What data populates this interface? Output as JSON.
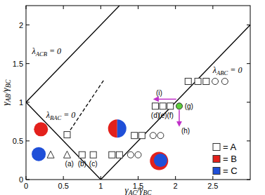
{
  "chart_data": {
    "type": "scatter",
    "xlabel": "γAC/γBC",
    "ylabel": "γAB/γBC",
    "xlim": [
      0,
      3
    ],
    "ylim": [
      0,
      2.25
    ],
    "xticks": [
      0,
      0.5,
      1,
      1.5,
      2,
      2.5
    ],
    "yticks": [
      0,
      0.5,
      1,
      1.5,
      2
    ],
    "legend": "lower right",
    "series": [
      {
        "name": "= A",
        "marker": "square",
        "color": "#ffffff",
        "x": [
          0.55,
          0.75,
          0.9,
          1.15,
          1.25,
          1.45,
          1.55,
          1.73,
          1.83,
          1.93,
          2.17,
          2.3,
          2.41
        ],
        "values": [
          0.58,
          0.32,
          0.32,
          0.32,
          0.32,
          0.57,
          0.57,
          0.95,
          0.95,
          0.95,
          1.27,
          1.27,
          1.27
        ]
      },
      {
        "name": "= B",
        "marker": "square",
        "color": "#e3211c",
        "x": [],
        "values": []
      },
      {
        "name": "= C",
        "marker": "square",
        "color": "#1f4fd8",
        "x": [],
        "values": []
      },
      {
        "marker": "circle",
        "color": "#ffffff",
        "x": [
          1.4,
          1.5,
          1.7,
          1.8,
          2.53,
          2.66
        ],
        "values": [
          0.32,
          0.32,
          0.57,
          0.57,
          1.27,
          1.27
        ]
      },
      {
        "marker": "triangle",
        "color": "#ffffff",
        "x": [
          0.33,
          0.55
        ],
        "values": [
          0.32,
          0.32
        ]
      },
      {
        "marker": "circle",
        "color": "#5ccf3a",
        "x": [
          2.05
        ],
        "values": [
          0.95
        ]
      }
    ],
    "lines": [
      {
        "label": "λACB = 0",
        "x": [
          0,
          1.25
        ],
        "values": [
          1,
          2.25
        ],
        "line_style": "solid",
        "label_x": 0.08,
        "label_y": 1.62
      },
      {
        "label": "λBAC = 0",
        "x": [
          0,
          1
        ],
        "values": [
          1,
          0
        ],
        "line_style": "solid",
        "label_x": 0.27,
        "label_y": 0.8
      },
      {
        "label": "λABC = 0",
        "x": [
          1,
          3
        ],
        "values": [
          0,
          2
        ],
        "line_style": "solid",
        "label_x": 2.5,
        "label_y": 1.38
      },
      {
        "x": [
          0.55,
          1.05
        ],
        "values": [
          0.58,
          1.3
        ],
        "line_style": "dashed"
      }
    ],
    "annotations": [
      {
        "text": "(a)",
        "x": 0.58,
        "y": 0.17
      },
      {
        "text": "(b)",
        "x": 0.75,
        "y": 0.17
      },
      {
        "text": "(c)",
        "x": 0.9,
        "y": 0.17
      },
      {
        "text": "(d)",
        "x": 1.73,
        "y": 0.8
      },
      {
        "text": "(e)",
        "x": 1.83,
        "y": 0.8
      },
      {
        "text": "(f)",
        "x": 1.93,
        "y": 0.8
      },
      {
        "text": "(g)",
        "x": 2.18,
        "y": 0.92
      }
    ],
    "arrows": [
      {
        "text": "(i)",
        "x": 2.01,
        "y": 1.04,
        "to_x": 1.72,
        "to_y": 1.04,
        "color": "#c030c8"
      },
      {
        "text": "(h)",
        "x": 2.05,
        "y": 0.9,
        "to_x": 2.05,
        "to_y": 0.7,
        "color": "#c030c8"
      }
    ]
  }
}
